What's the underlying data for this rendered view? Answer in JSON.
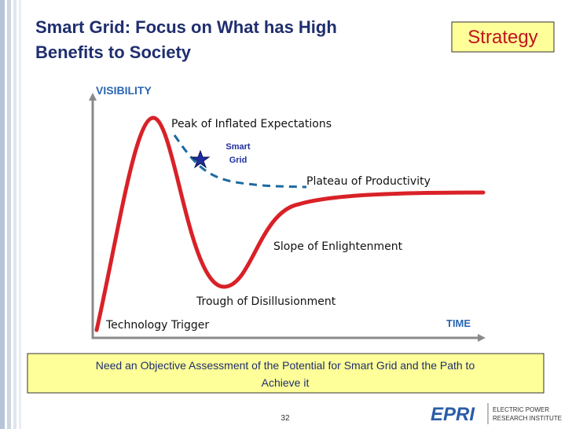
{
  "header": {
    "title_lines": [
      "Smart Grid: Focus on What has High",
      "Benefits to Society"
    ],
    "badge": "Strategy"
  },
  "diagram": {
    "y_axis": "VISIBILITY",
    "x_axis": "TIME",
    "phases": [
      "Peak of Inflated Expectations",
      "Plateau of Productivity",
      "Slope of Enlightenment",
      "Trough of Disillusionment",
      "Technology Trigger"
    ],
    "marker_lines": [
      "Smart",
      "Grid"
    ]
  },
  "callout_lines": [
    "Need an Objective Assessment of the Potential for Smart Grid and the Path to",
    "Achieve it"
  ],
  "footer": {
    "page": "32",
    "logo": "EPRI",
    "logo_lines": [
      "ELECTRIC POWER",
      "RESEARCH INSTITUTE"
    ]
  }
}
